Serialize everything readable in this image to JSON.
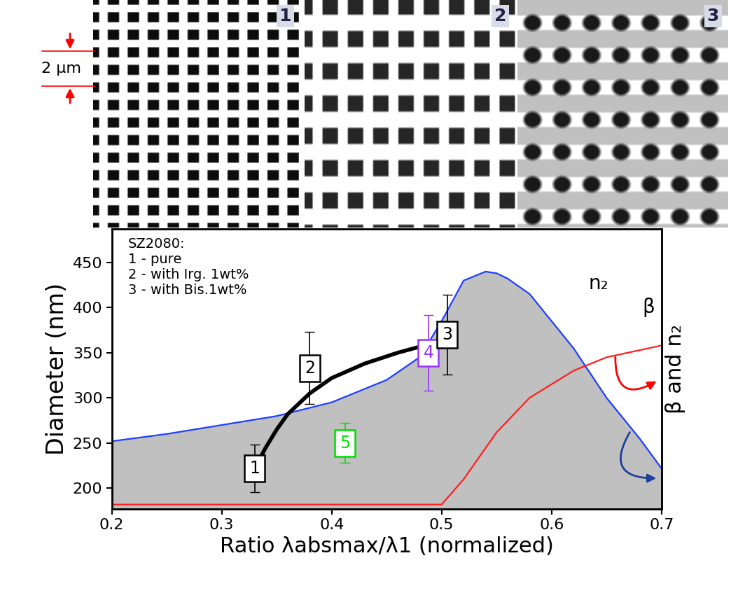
{
  "chart_data": {
    "type": "scatter",
    "xlabel": "Ratio λabsmax/λ1 (normalized)",
    "ylabel": "Diameter (nm)",
    "y2label": "β and n₂",
    "panels": [
      "1",
      "2",
      "3"
    ],
    "scale_label": "2 μm",
    "note": "SZ2080:\n1 - pure\n2 - with Irg. 1wt%\n3 - with Bis.1wt%",
    "xlim": [
      0.2,
      0.7
    ],
    "xticks": [
      0.2,
      0.3,
      0.4,
      0.5,
      0.6,
      0.7
    ],
    "ylim": [
      177,
      487
    ],
    "yticks": [
      200,
      250,
      300,
      350,
      400,
      450
    ],
    "y2lim": [
      0,
      1
    ],
    "y2ticks": [],
    "series": [
      {
        "type": "area",
        "name": "n₂",
        "axis": "y2",
        "color": "#1f3fff",
        "x": [
          0.2,
          0.25,
          0.3,
          0.35,
          0.4,
          0.45,
          0.48,
          0.5,
          0.52,
          0.54,
          0.55,
          0.56,
          0.58,
          0.6,
          0.62,
          0.65,
          0.68,
          0.7
        ],
        "values": [
          0.242,
          0.268,
          0.3,
          0.332,
          0.381,
          0.461,
          0.542,
          0.671,
          0.816,
          0.848,
          0.842,
          0.823,
          0.768,
          0.671,
          0.574,
          0.397,
          0.252,
          0.145
        ]
      },
      {
        "type": "line",
        "name": "β",
        "axis": "y2",
        "color": "#ff1f1f",
        "x": [
          0.2,
          0.3,
          0.4,
          0.5,
          0.52,
          0.55,
          0.58,
          0.62,
          0.65,
          0.7
        ],
        "values": [
          0.016,
          0.016,
          0.016,
          0.016,
          0.106,
          0.274,
          0.397,
          0.494,
          0.542,
          0.584
        ]
      },
      {
        "type": "line",
        "color": "#000000",
        "x": [
          0.33,
          0.34,
          0.35,
          0.36,
          0.38,
          0.4,
          0.43,
          0.46,
          0.49,
          0.505
        ],
        "values": [
          222,
          245,
          265,
          282,
          305,
          322,
          338,
          350,
          360,
          365
        ]
      },
      {
        "type": "scatter",
        "marker": "square",
        "x": [
          0.33,
          0.38,
          0.488,
          0.505,
          0.412
        ],
        "values": [
          222,
          333,
          350,
          370,
          250
        ],
        "error": [
          26,
          40,
          42,
          44,
          22
        ],
        "labels": [
          "1",
          "2",
          "4",
          "3",
          "5"
        ],
        "colors": [
          "#000000",
          "#000000",
          "#9933ff",
          "#000000",
          "#00dd00"
        ]
      }
    ]
  }
}
